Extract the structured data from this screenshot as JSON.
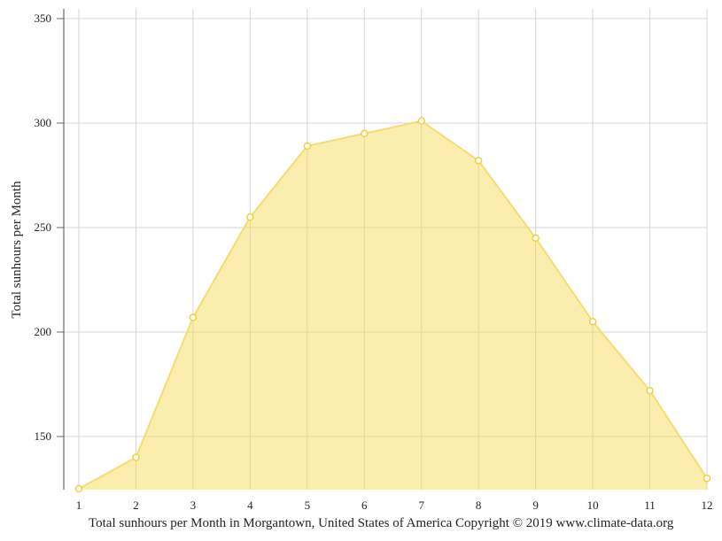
{
  "chart_data": {
    "type": "area",
    "title": "Total sunhours per Month in Morgantown, United States of America Copyright © 2019 www.climate-data.org",
    "xlabel": "",
    "ylabel": "Total sunhours per Month",
    "categories": [
      "1",
      "2",
      "3",
      "4",
      "5",
      "6",
      "7",
      "8",
      "9",
      "10",
      "11",
      "12"
    ],
    "series": [
      {
        "name": "Total sunhours per Month",
        "values": [
          125,
          140,
          207,
          255,
          289,
          295,
          301,
          282,
          245,
          205,
          172,
          130
        ],
        "color": "#f7d84a"
      }
    ],
    "yticks": [
      150,
      200,
      250,
      300,
      350
    ],
    "ylim": [
      125,
      355
    ],
    "grid": true,
    "legend": "none"
  },
  "caption": "Total sunhours per Month in Morgantown, United States of America Copyright © 2019 www.climate-data.org",
  "y_axis_label": "Total sunhours per Month"
}
